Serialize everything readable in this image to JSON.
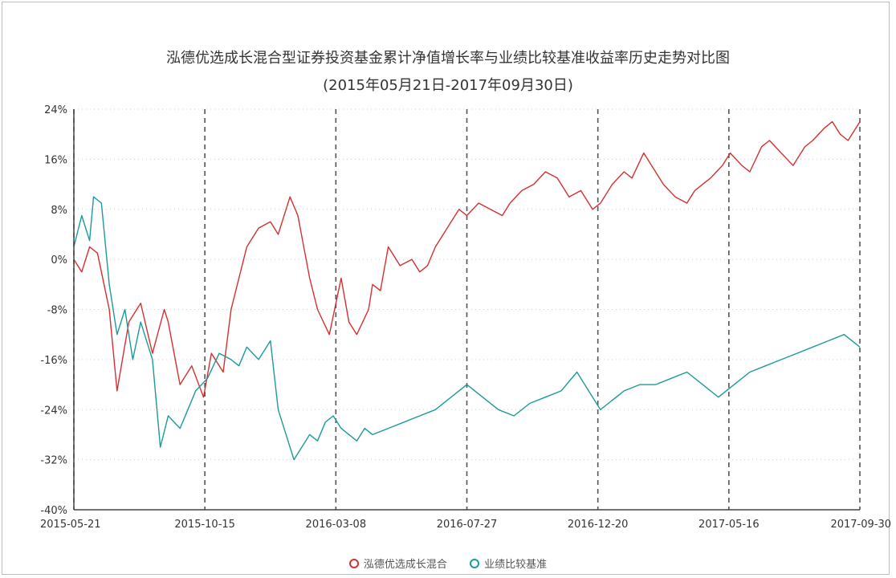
{
  "chart_data": {
    "type": "line",
    "title": "泓德优选成长混合型证券投资基金累计净值增长率与业绩比较基准收益率历史走势对比图",
    "subtitle": "(2015年05月21日-2017年09月30日)",
    "x_tick_labels": [
      "2015-05-21",
      "2015-10-15",
      "2016-03-08",
      "2016-07-27",
      "2016-12-20",
      "2017-05-16",
      "2017-09-30"
    ],
    "y_tick_labels": [
      "24%",
      "16%",
      "8%",
      "0%",
      "-8%",
      "-16%",
      "-24%",
      "-32%",
      "-40%"
    ],
    "ylim": [
      -40,
      24
    ],
    "grid": true,
    "legend_position": "bottom",
    "series": [
      {
        "name": "泓德优选成长混合",
        "color": "#d62f2f",
        "x": [
          0,
          0.01,
          0.02,
          0.03,
          0.045,
          0.055,
          0.07,
          0.085,
          0.1,
          0.115,
          0.12,
          0.135,
          0.15,
          0.165,
          0.175,
          0.19,
          0.2,
          0.21,
          0.22,
          0.235,
          0.25,
          0.26,
          0.275,
          0.285,
          0.3,
          0.31,
          0.325,
          0.34,
          0.35,
          0.36,
          0.375,
          0.38,
          0.39,
          0.4,
          0.415,
          0.43,
          0.44,
          0.45,
          0.46,
          0.475,
          0.49,
          0.5,
          0.515,
          0.53,
          0.545,
          0.555,
          0.57,
          0.585,
          0.6,
          0.615,
          0.63,
          0.645,
          0.66,
          0.67,
          0.685,
          0.7,
          0.71,
          0.725,
          0.74,
          0.75,
          0.765,
          0.78,
          0.79,
          0.8,
          0.81,
          0.825,
          0.835,
          0.85,
          0.86,
          0.875,
          0.885,
          0.9,
          0.915,
          0.93,
          0.94,
          0.955,
          0.965,
          0.975,
          0.985,
          1.0
        ],
        "values": [
          0,
          -2,
          2,
          1,
          -8,
          -21,
          -10,
          -7,
          -15,
          -8,
          -10,
          -20,
          -17,
          -22,
          -15,
          -18,
          -8,
          -3,
          2,
          5,
          6,
          4,
          10,
          7,
          -3,
          -8,
          -12,
          -3,
          -10,
          -12,
          -8,
          -4,
          -5,
          2,
          -1,
          0,
          -2,
          -1,
          2,
          5,
          8,
          7,
          9,
          8,
          7,
          9,
          11,
          12,
          14,
          13,
          10,
          11,
          8,
          9,
          12,
          14,
          13,
          17,
          14,
          12,
          10,
          9,
          11,
          12,
          13,
          15,
          17,
          15,
          14,
          18,
          19,
          17,
          15,
          18,
          19,
          21,
          22,
          20,
          19,
          22
        ]
      },
      {
        "name": "业绩比较基准",
        "color": "#1a9b99",
        "x": [
          0,
          0.01,
          0.02,
          0.025,
          0.035,
          0.045,
          0.055,
          0.065,
          0.075,
          0.085,
          0.1,
          0.11,
          0.12,
          0.135,
          0.145,
          0.155,
          0.17,
          0.185,
          0.2,
          0.21,
          0.22,
          0.235,
          0.25,
          0.26,
          0.27,
          0.28,
          0.29,
          0.3,
          0.31,
          0.32,
          0.33,
          0.34,
          0.36,
          0.37,
          0.38,
          0.4,
          0.42,
          0.44,
          0.46,
          0.48,
          0.5,
          0.52,
          0.54,
          0.56,
          0.58,
          0.6,
          0.62,
          0.64,
          0.66,
          0.67,
          0.68,
          0.7,
          0.72,
          0.74,
          0.76,
          0.78,
          0.8,
          0.82,
          0.84,
          0.86,
          0.88,
          0.9,
          0.92,
          0.94,
          0.96,
          0.98,
          1.0
        ],
        "values": [
          2,
          7,
          3,
          10,
          9,
          -4,
          -12,
          -8,
          -16,
          -10,
          -16,
          -30,
          -25,
          -27,
          -24,
          -21,
          -19,
          -15,
          -16,
          -17,
          -14,
          -16,
          -13,
          -24,
          -28,
          -32,
          -30,
          -28,
          -29,
          -26,
          -25,
          -27,
          -29,
          -27,
          -28,
          -27,
          -26,
          -25,
          -24,
          -22,
          -20,
          -22,
          -24,
          -25,
          -23,
          -22,
          -21,
          -18,
          -22,
          -24,
          -23,
          -21,
          -20,
          -20,
          -19,
          -18,
          -20,
          -22,
          -20,
          -18,
          -17,
          -16,
          -15,
          -14,
          -13,
          -12,
          -14
        ]
      }
    ]
  }
}
